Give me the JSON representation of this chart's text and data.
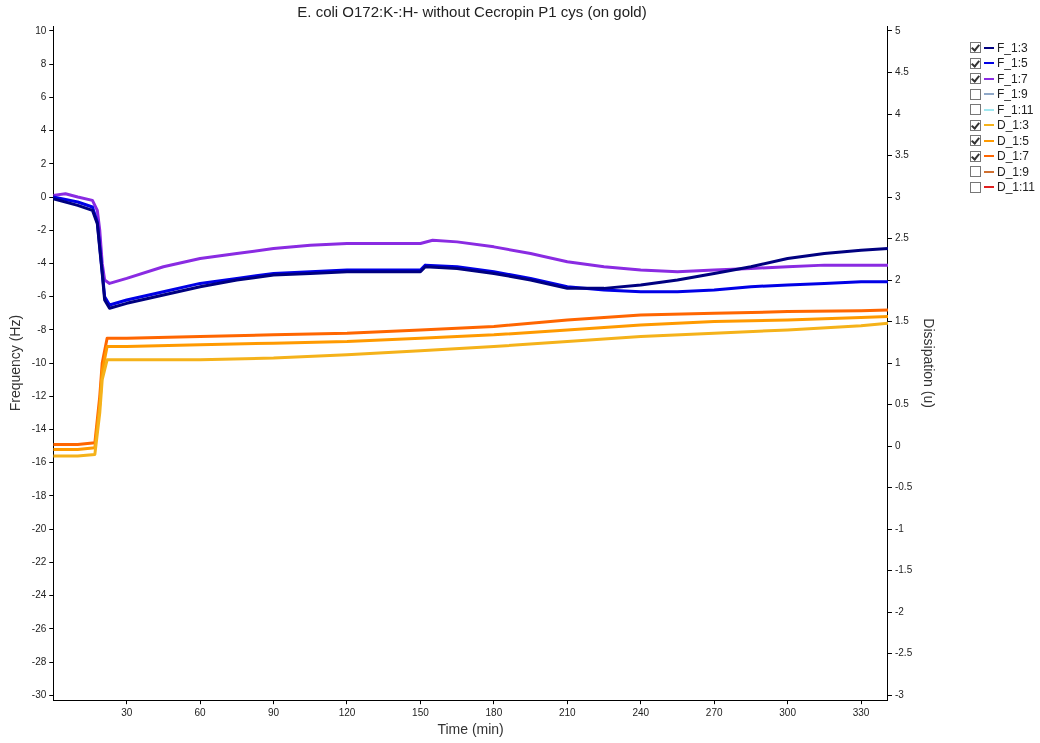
{
  "chart_data": {
    "type": "line",
    "title": "E. coli O172:K-:H- without Cecropin P1 cys (on gold)",
    "xlabel": "Time (min)",
    "ylabel": "Frequency (Hz)",
    "y2label": "Dissipation (u)",
    "xlim": [
      0,
      341
    ],
    "xticks": [
      30,
      60,
      90,
      120,
      150,
      180,
      210,
      240,
      270,
      300,
      330
    ],
    "ylim": [
      -30.3,
      10.3
    ],
    "yticks": [
      -30,
      -28,
      -26,
      -24,
      -22,
      -20,
      -18,
      -16,
      -14,
      -12,
      -10,
      -8,
      -6,
      -4,
      -2,
      0,
      2,
      4,
      6,
      8,
      10
    ],
    "y2lim": [
      -3.06,
      5.06
    ],
    "y2ticks": [
      -3,
      -2.5,
      -2,
      -1.5,
      -1,
      -0.5,
      0,
      0.5,
      1,
      1.5,
      2,
      2.5,
      3,
      3.5,
      4,
      4.5,
      5
    ],
    "grid": false,
    "legend": "top right",
    "marker": "none",
    "line_style": "solid",
    "series": [
      {
        "name": "F_1:3",
        "color": "#000080",
        "x": [
          0,
          10,
          16,
          18,
          20,
          21,
          23,
          30,
          45,
          60,
          75,
          90,
          105,
          120,
          135,
          150,
          152,
          165,
          180,
          195,
          210,
          225,
          240,
          255,
          270,
          285,
          300,
          315,
          330,
          341
        ],
        "values": [
          -0.1,
          -0.5,
          -0.8,
          -1.6,
          -4.6,
          -6.2,
          -6.7,
          -6.4,
          -5.9,
          -5.4,
          -5.0,
          -4.7,
          -4.6,
          -4.5,
          -4.5,
          -4.5,
          -4.2,
          -4.3,
          -4.6,
          -5.0,
          -5.5,
          -5.5,
          -5.3,
          -5.0,
          -4.6,
          -4.2,
          -3.7,
          -3.4,
          -3.2,
          -3.1
        ]
      },
      {
        "name": "F_1:5",
        "color": "#0000e6",
        "x": [
          0,
          10,
          16,
          18,
          20,
          21,
          23,
          30,
          45,
          60,
          75,
          90,
          105,
          120,
          135,
          150,
          152,
          165,
          180,
          195,
          210,
          225,
          240,
          255,
          270,
          285,
          300,
          315,
          330,
          341
        ],
        "values": [
          0,
          -0.3,
          -0.6,
          -1.5,
          -4.5,
          -6.0,
          -6.5,
          -6.2,
          -5.7,
          -5.2,
          -4.9,
          -4.6,
          -4.5,
          -4.4,
          -4.4,
          -4.4,
          -4.1,
          -4.2,
          -4.5,
          -4.9,
          -5.4,
          -5.6,
          -5.7,
          -5.7,
          -5.6,
          -5.4,
          -5.3,
          -5.2,
          -5.1,
          -5.1
        ]
      },
      {
        "name": "F_1:7",
        "color": "#8a2be2",
        "x": [
          0,
          5,
          10,
          16,
          18,
          19,
          20,
          21,
          23,
          30,
          45,
          60,
          75,
          90,
          105,
          120,
          135,
          150,
          155,
          165,
          180,
          195,
          210,
          225,
          240,
          255,
          270,
          285,
          300,
          315,
          330,
          341
        ],
        "values": [
          0.1,
          0.2,
          0,
          -0.2,
          -0.8,
          -2.0,
          -4.0,
          -5.0,
          -5.2,
          -4.9,
          -4.2,
          -3.7,
          -3.4,
          -3.1,
          -2.9,
          -2.8,
          -2.8,
          -2.8,
          -2.6,
          -2.7,
          -3.0,
          -3.4,
          -3.9,
          -4.2,
          -4.4,
          -4.5,
          -4.4,
          -4.3,
          -4.2,
          -4.1,
          -4.1,
          -4.1
        ]
      },
      {
        "name": "F_1:9",
        "color": "#8fa8c8"
      },
      {
        "name": "F_1:11",
        "color": "#a0e8f0"
      },
      {
        "name": "D_1:3",
        "color": "#f5b21a",
        "axis": "y2",
        "x": [
          0,
          10,
          17,
          19,
          20,
          22,
          30,
          60,
          90,
          120,
          150,
          180,
          210,
          240,
          270,
          300,
          330,
          341
        ],
        "values": [
          -0.12,
          -0.12,
          -0.1,
          0.4,
          0.8,
          1.04,
          1.04,
          1.04,
          1.06,
          1.1,
          1.15,
          1.2,
          1.26,
          1.32,
          1.36,
          1.4,
          1.45,
          1.48
        ]
      },
      {
        "name": "D_1:5",
        "color": "#ff9a00",
        "axis": "y2",
        "x": [
          0,
          10,
          17,
          19,
          20,
          22,
          30,
          60,
          90,
          120,
          150,
          180,
          210,
          240,
          270,
          300,
          330,
          341
        ],
        "values": [
          -0.04,
          -0.04,
          -0.02,
          0.5,
          0.9,
          1.2,
          1.2,
          1.22,
          1.24,
          1.26,
          1.3,
          1.34,
          1.4,
          1.46,
          1.5,
          1.52,
          1.55,
          1.56
        ]
      },
      {
        "name": "D_1:7",
        "color": "#ff6600",
        "axis": "y2",
        "x": [
          0,
          10,
          17,
          19,
          20,
          22,
          30,
          60,
          90,
          120,
          150,
          180,
          210,
          240,
          270,
          300,
          330,
          341
        ],
        "values": [
          0.02,
          0.02,
          0.04,
          0.6,
          1.0,
          1.3,
          1.3,
          1.32,
          1.34,
          1.36,
          1.4,
          1.44,
          1.52,
          1.58,
          1.6,
          1.62,
          1.63,
          1.64
        ]
      },
      {
        "name": "D_1:9",
        "color": "#d07030",
        "axis": "y2"
      },
      {
        "name": "D_1:11",
        "color": "#e02020",
        "axis": "y2"
      }
    ]
  }
}
